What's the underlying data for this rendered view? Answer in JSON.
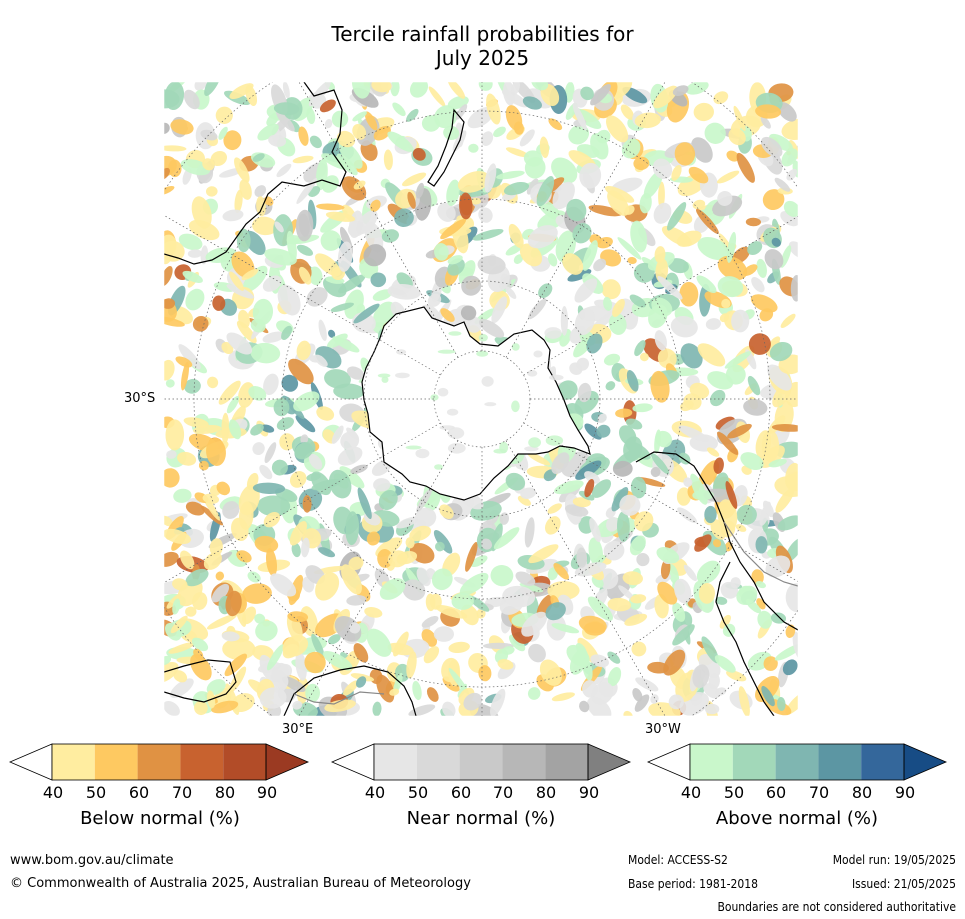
{
  "title_line1": "Tercile rainfall probabilities for",
  "title_line2": "July 2025",
  "map": {
    "labels": {
      "lat": "30°S",
      "east": "30°E",
      "west": "30°W"
    },
    "legend": {
      "below": {
        "title": "Below normal (%)",
        "ticks": [
          "40",
          "50",
          "60",
          "70",
          "80",
          "90"
        ],
        "colors": [
          "#ffffff",
          "#ffeda0",
          "#fec961",
          "#e09243",
          "#c8622f",
          "#b24c28",
          "#9b3a22"
        ]
      },
      "near": {
        "title": "Near normal (%)",
        "ticks": [
          "40",
          "50",
          "60",
          "70",
          "80",
          "90"
        ],
        "colors": [
          "#ffffff",
          "#e6e6e6",
          "#d9d9d9",
          "#c9c9c9",
          "#b7b7b7",
          "#a3a3a3",
          "#808080"
        ]
      },
      "above": {
        "title": "Above normal (%)",
        "ticks": [
          "40",
          "50",
          "60",
          "70",
          "80",
          "90"
        ],
        "colors": [
          "#ffffff",
          "#c9f7cb",
          "#a2d8b9",
          "#7fb6b1",
          "#5c96a3",
          "#34679b",
          "#174c85"
        ]
      }
    }
  },
  "footer": {
    "url": "www.bom.gov.au/climate",
    "copyright": "© Commonwealth of Australia 2025, Australian Bureau of Meteorology",
    "model": "Model: ACCESS-S2",
    "model_run": "Model run: 19/05/2025",
    "base_period": "Base period: 1981-2018",
    "issued": "Issued: 21/05/2025",
    "disclaimer": "Boundaries are not considered authoritative"
  }
}
